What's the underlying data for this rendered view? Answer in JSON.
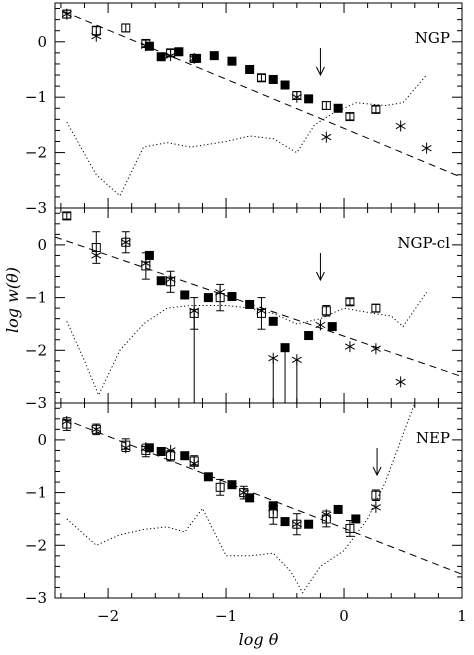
{
  "chart_data": {
    "type": "scatter",
    "shared_x": {
      "label": "log θ",
      "range": [
        -2.45,
        1.0
      ],
      "ticks": [
        -2,
        -1,
        0,
        1
      ],
      "tick_labels": [
        "−2",
        "−1",
        "0",
        "1"
      ]
    },
    "shared_y_label": "log w(θ)",
    "panels": [
      {
        "label": "NGP",
        "ylim": [
          -3.0,
          0.7
        ],
        "yticks": [
          -3,
          -2,
          -1,
          0
        ],
        "ytick_labels": [
          "−3",
          "−2",
          "−1",
          "0"
        ],
        "arrow_x": -0.2,
        "open_squares": [
          {
            "x": -2.35,
            "y": 0.5,
            "err": 0.07
          },
          {
            "x": -2.1,
            "y": 0.2,
            "err": 0.08
          },
          {
            "x": -1.85,
            "y": 0.25,
            "err": 0.07
          },
          {
            "x": -1.68,
            "y": -0.03,
            "err": 0.06
          },
          {
            "x": -1.47,
            "y": -0.2,
            "err": 0.06
          },
          {
            "x": -1.27,
            "y": -0.3,
            "err": 0.06
          },
          {
            "x": -0.7,
            "y": -0.65,
            "err": 0.06
          },
          {
            "x": -0.4,
            "y": -0.97,
            "err": 0.07
          },
          {
            "x": -0.15,
            "y": -1.15,
            "err": 0.07
          },
          {
            "x": 0.05,
            "y": -1.35,
            "err": 0.06
          },
          {
            "x": 0.27,
            "y": -1.22,
            "err": 0.06
          }
        ],
        "filled_squares": [
          {
            "x": -1.65,
            "y": -0.08
          },
          {
            "x": -1.55,
            "y": -0.27
          },
          {
            "x": -1.4,
            "y": -0.18
          },
          {
            "x": -1.25,
            "y": -0.3
          },
          {
            "x": -1.1,
            "y": -0.25
          },
          {
            "x": -0.95,
            "y": -0.35
          },
          {
            "x": -0.8,
            "y": -0.5
          },
          {
            "x": -0.6,
            "y": -0.68
          },
          {
            "x": -0.5,
            "y": -0.78
          },
          {
            "x": -0.3,
            "y": -1.03
          },
          {
            "x": -0.05,
            "y": -1.2
          }
        ],
        "asterisks": [
          {
            "x": -2.35,
            "y": 0.5
          },
          {
            "x": -2.1,
            "y": 0.1
          },
          {
            "x": -1.68,
            "y": -0.07
          },
          {
            "x": -1.47,
            "y": -0.25
          },
          {
            "x": -1.27,
            "y": -0.3
          },
          {
            "x": -0.4,
            "y": -1.0
          },
          {
            "x": -0.15,
            "y": -1.72
          },
          {
            "x": 0.48,
            "y": -1.52
          },
          {
            "x": 0.7,
            "y": -1.92
          }
        ],
        "dashed_line": [
          {
            "x": -2.38,
            "y": 0.55
          },
          {
            "x": 1.0,
            "y": -2.45
          }
        ],
        "dotted_curve": [
          {
            "x": -2.35,
            "y": -1.45
          },
          {
            "x": -2.1,
            "y": -2.4
          },
          {
            "x": -1.9,
            "y": -2.78
          },
          {
            "x": -1.7,
            "y": -1.9
          },
          {
            "x": -1.5,
            "y": -1.82
          },
          {
            "x": -1.3,
            "y": -1.9
          },
          {
            "x": -1.0,
            "y": -1.8
          },
          {
            "x": -0.8,
            "y": -1.7
          },
          {
            "x": -0.6,
            "y": -1.75
          },
          {
            "x": -0.4,
            "y": -2.0
          },
          {
            "x": -0.25,
            "y": -1.5
          },
          {
            "x": -0.1,
            "y": -1.3
          },
          {
            "x": 0.1,
            "y": -1.1
          },
          {
            "x": 0.35,
            "y": -1.15
          },
          {
            "x": 0.5,
            "y": -1.1
          },
          {
            "x": 0.7,
            "y": -0.6
          }
        ]
      },
      {
        "label": "NGP-cl",
        "ylim": [
          -3.0,
          0.7
        ],
        "yticks": [
          -3,
          -2,
          -1,
          0
        ],
        "ytick_labels": [
          "−3",
          "−2",
          "−1",
          "0"
        ],
        "arrow_x": -0.2,
        "open_squares": [
          {
            "x": -2.35,
            "y": 0.55,
            "err": 0.06
          },
          {
            "x": -2.1,
            "y": -0.05,
            "err": 0.3
          },
          {
            "x": -1.85,
            "y": 0.05,
            "err": 0.2
          },
          {
            "x": -1.68,
            "y": -0.4,
            "err": 0.25
          },
          {
            "x": -1.47,
            "y": -0.7,
            "err": 0.2
          },
          {
            "x": -1.27,
            "y": -1.3,
            "err": 0.3
          },
          {
            "x": -1.05,
            "y": -1.0,
            "err": 0.25
          },
          {
            "x": -0.7,
            "y": -1.3,
            "err": 0.3
          },
          {
            "x": -0.15,
            "y": -1.25,
            "err": 0.1
          },
          {
            "x": 0.05,
            "y": -1.08,
            "err": 0.06
          },
          {
            "x": 0.27,
            "y": -1.2,
            "err": 0.07
          }
        ],
        "filled_squares": [
          {
            "x": -1.65,
            "y": -0.2
          },
          {
            "x": -1.55,
            "y": -0.68
          },
          {
            "x": -1.35,
            "y": -0.95
          },
          {
            "x": -1.15,
            "y": -1.0
          },
          {
            "x": -0.95,
            "y": -0.98
          },
          {
            "x": -0.8,
            "y": -1.13
          },
          {
            "x": -0.6,
            "y": -1.45
          },
          {
            "x": -0.5,
            "y": -1.95
          },
          {
            "x": -0.3,
            "y": -1.72
          },
          {
            "x": -0.1,
            "y": -1.55
          }
        ],
        "asterisks": [
          {
            "x": -2.1,
            "y": -0.2
          },
          {
            "x": -1.85,
            "y": 0.05
          },
          {
            "x": -1.68,
            "y": -0.35
          },
          {
            "x": -1.47,
            "y": -0.65
          },
          {
            "x": -1.27,
            "y": -1.25
          },
          {
            "x": -1.05,
            "y": -0.9
          },
          {
            "x": -0.7,
            "y": -1.25
          },
          {
            "x": -0.6,
            "y": -2.15
          },
          {
            "x": -0.4,
            "y": -2.18
          },
          {
            "x": -0.2,
            "y": -1.52
          },
          {
            "x": 0.05,
            "y": -1.93
          },
          {
            "x": 0.27,
            "y": -1.97
          },
          {
            "x": 0.48,
            "y": -2.6
          }
        ],
        "error_drops": [
          {
            "x": -1.27,
            "y_top": -1.3,
            "y_bottom": -3.0
          },
          {
            "x": -0.6,
            "y_top": -2.15,
            "y_bottom": -3.0
          },
          {
            "x": -0.5,
            "y_top": -1.95,
            "y_bottom": -3.0
          },
          {
            "x": -0.4,
            "y_top": -2.18,
            "y_bottom": -3.0
          }
        ],
        "dashed_line": [
          {
            "x": -2.45,
            "y": 0.15
          },
          {
            "x": 1.0,
            "y": -2.5
          }
        ],
        "dotted_curve": [
          {
            "x": -2.35,
            "y": -1.45
          },
          {
            "x": -2.2,
            "y": -2.2
          },
          {
            "x": -2.08,
            "y": -2.85
          },
          {
            "x": -1.9,
            "y": -2.0
          },
          {
            "x": -1.7,
            "y": -1.5
          },
          {
            "x": -1.5,
            "y": -1.2
          },
          {
            "x": -1.3,
            "y": -1.15
          },
          {
            "x": -1.0,
            "y": -1.15
          },
          {
            "x": -0.8,
            "y": -1.2
          },
          {
            "x": -0.6,
            "y": -1.3
          },
          {
            "x": -0.4,
            "y": -1.5
          },
          {
            "x": -0.2,
            "y": -1.4
          },
          {
            "x": 0.0,
            "y": -1.2
          },
          {
            "x": 0.25,
            "y": -1.3
          },
          {
            "x": 0.4,
            "y": -1.35
          },
          {
            "x": 0.5,
            "y": -1.55
          },
          {
            "x": 0.7,
            "y": -0.9
          }
        ]
      },
      {
        "label": "NEP",
        "ylim": [
          -3.0,
          0.7
        ],
        "yticks": [
          -3,
          -2,
          -1,
          0
        ],
        "ytick_labels": [
          "−3",
          "−2",
          "−1",
          "0"
        ],
        "arrow_x": 0.28,
        "open_squares": [
          {
            "x": -2.35,
            "y": 0.3,
            "err": 0.12
          },
          {
            "x": -2.1,
            "y": 0.2,
            "err": 0.1
          },
          {
            "x": -1.85,
            "y": -0.1,
            "err": 0.12
          },
          {
            "x": -1.68,
            "y": -0.2,
            "err": 0.12
          },
          {
            "x": -1.47,
            "y": -0.3,
            "err": 0.1
          },
          {
            "x": -1.27,
            "y": -0.4,
            "err": 0.1
          },
          {
            "x": -1.05,
            "y": -0.9,
            "err": 0.15
          },
          {
            "x": -0.85,
            "y": -1.0,
            "err": 0.12
          },
          {
            "x": -0.6,
            "y": -1.4,
            "err": 0.2
          },
          {
            "x": -0.4,
            "y": -1.6,
            "err": 0.2
          },
          {
            "x": -0.15,
            "y": -1.5,
            "err": 0.15
          },
          {
            "x": 0.05,
            "y": -1.68,
            "err": 0.15
          },
          {
            "x": 0.27,
            "y": -1.05,
            "err": 0.1
          }
        ],
        "filled_squares": [
          {
            "x": -1.65,
            "y": -0.15
          },
          {
            "x": -1.55,
            "y": -0.22
          },
          {
            "x": -1.35,
            "y": -0.3
          },
          {
            "x": -1.15,
            "y": -0.7
          },
          {
            "x": -0.95,
            "y": -0.85
          },
          {
            "x": -0.8,
            "y": -1.1
          },
          {
            "x": -0.6,
            "y": -1.25
          },
          {
            "x": -0.5,
            "y": -1.55
          },
          {
            "x": -0.3,
            "y": -1.6
          },
          {
            "x": -0.05,
            "y": -1.32
          },
          {
            "x": 0.1,
            "y": -1.5
          }
        ],
        "asterisks": [
          {
            "x": -2.35,
            "y": 0.35
          },
          {
            "x": -2.1,
            "y": 0.2
          },
          {
            "x": -1.85,
            "y": -0.15
          },
          {
            "x": -1.68,
            "y": -0.15
          },
          {
            "x": -1.47,
            "y": -0.2
          },
          {
            "x": -1.27,
            "y": -0.45
          },
          {
            "x": -0.85,
            "y": -1.0
          },
          {
            "x": -0.6,
            "y": -1.3
          },
          {
            "x": -0.4,
            "y": -1.6
          },
          {
            "x": -0.15,
            "y": -1.42
          },
          {
            "x": 0.27,
            "y": -1.28
          }
        ],
        "dashed_line": [
          {
            "x": -2.38,
            "y": 0.4
          },
          {
            "x": 1.0,
            "y": -2.55
          }
        ],
        "dotted_curve": [
          {
            "x": -2.35,
            "y": -1.5
          },
          {
            "x": -2.1,
            "y": -2.0
          },
          {
            "x": -1.9,
            "y": -1.8
          },
          {
            "x": -1.7,
            "y": -1.7
          },
          {
            "x": -1.5,
            "y": -1.65
          },
          {
            "x": -1.35,
            "y": -1.75
          },
          {
            "x": -1.2,
            "y": -1.3
          },
          {
            "x": -1.0,
            "y": -2.2
          },
          {
            "x": -0.8,
            "y": -2.2
          },
          {
            "x": -0.6,
            "y": -2.15
          },
          {
            "x": -0.45,
            "y": -2.5
          },
          {
            "x": -0.35,
            "y": -2.9
          },
          {
            "x": -0.2,
            "y": -2.4
          },
          {
            "x": 0.0,
            "y": -2.1
          },
          {
            "x": 0.2,
            "y": -1.5
          },
          {
            "x": 0.35,
            "y": -0.8
          },
          {
            "x": 0.5,
            "y": 0.1
          },
          {
            "x": 0.6,
            "y": 0.7
          }
        ]
      }
    ]
  }
}
